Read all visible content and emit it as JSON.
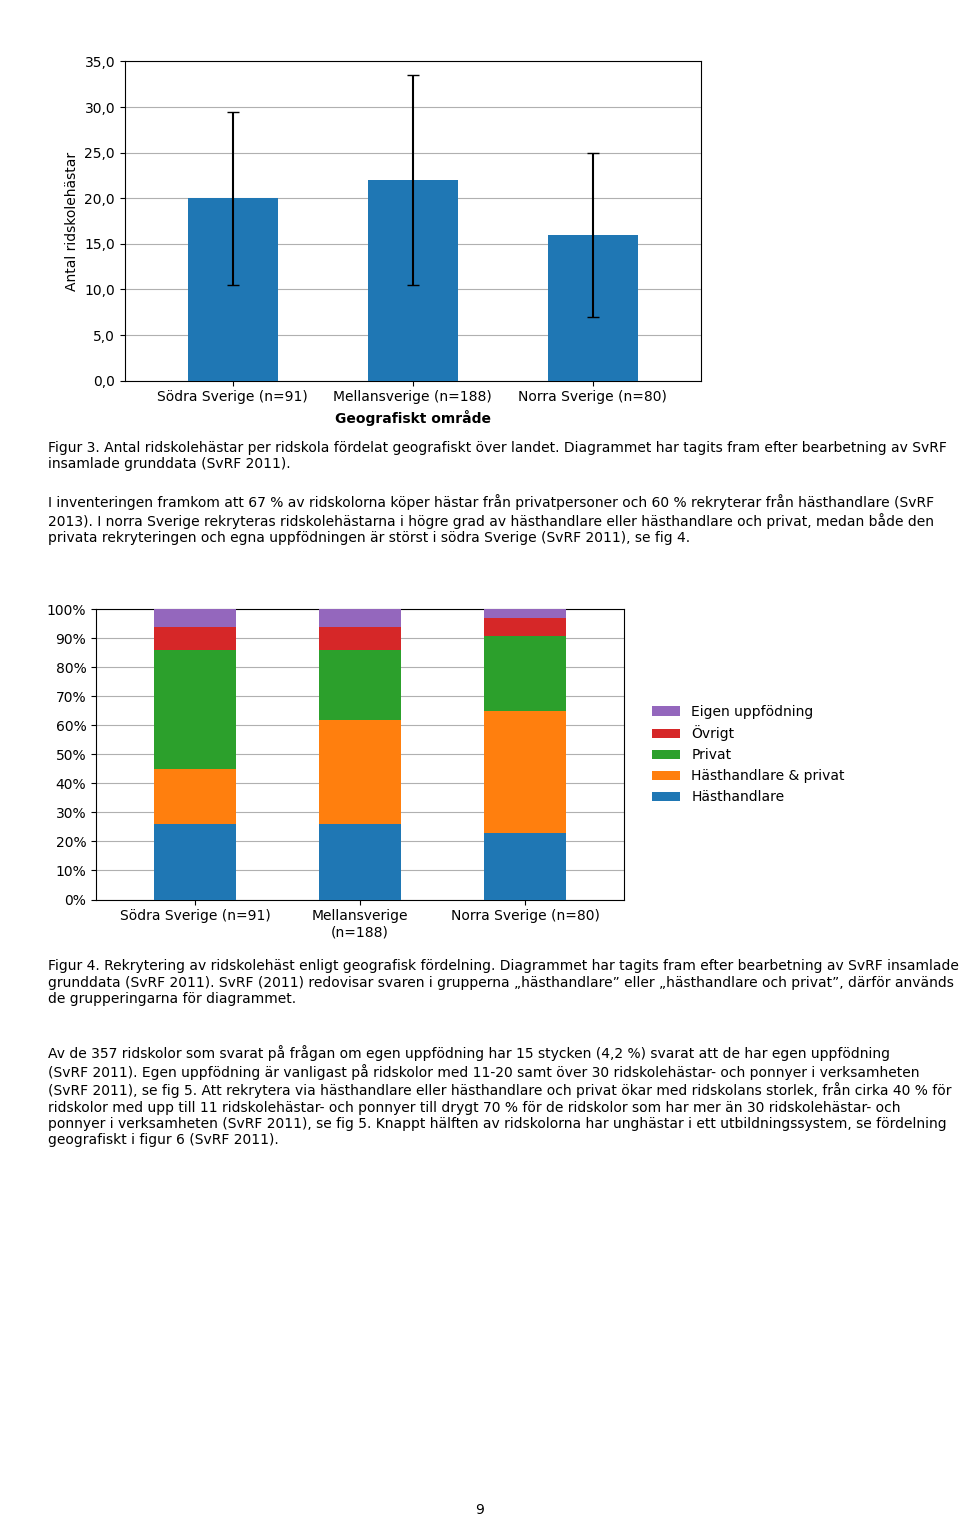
{
  "chart_data": [
    {
      "type": "bar",
      "categories": [
        "Södra Sverige (n=91)",
        "Mellansverige (n=188)",
        "Norra Sverige (n=80)"
      ],
      "values": [
        20.0,
        22.0,
        16.0
      ],
      "error_lower": [
        9.5,
        11.5,
        9.0
      ],
      "error_upper": [
        9.5,
        11.5,
        9.0
      ],
      "ylabel": "Antal ridskolehästar",
      "xlabel": "Geografiskt område",
      "ylim": [
        0,
        35
      ],
      "yticks": [
        {
          "value": 0,
          "label": "0,0"
        },
        {
          "value": 5,
          "label": "5,0"
        },
        {
          "value": 10,
          "label": "10,0"
        },
        {
          "value": 15,
          "label": "15,0"
        },
        {
          "value": 20,
          "label": "20,0"
        },
        {
          "value": 25,
          "label": "25,0"
        },
        {
          "value": 30,
          "label": "30,0"
        },
        {
          "value": 35,
          "label": "35,0"
        }
      ],
      "grid": true,
      "annotations": [
        "Figur 3. Antal ridskolehästar per ridskola fördelat geografiskt över landet. Diagrammet har tagits fram efter bearbetning av SvRF insamlade grunddata (SvRF 2011).",
        "I inventeringen framkom att 67 % av ridskolorna köper hästar från privatpersoner och 60 % rekryterar från hästhandlare (SvRF 2013). I norra Sverige rekryteras ridskolehästarna i högre grad av hästhandlare eller hästhandlare och privat, medan både den privata rekryteringen och egna uppfödningen är störst i södra Sverige (SvRF 2011), se fig 4."
      ]
    },
    {
      "type": "bar",
      "stacked": true,
      "categories": [
        "Södra Sverige (n=91)",
        "Mellansverige\n(n=188)",
        "Norra Sverige (n=80)"
      ],
      "series": [
        {
          "name": "Hästhandlare",
          "values": [
            26,
            26,
            23
          ]
        },
        {
          "name": "Hästhandlare & privat",
          "values": [
            19,
            36,
            42
          ]
        },
        {
          "name": "Privat",
          "values": [
            41,
            24,
            26
          ]
        },
        {
          "name": "Övrigt",
          "values": [
            8,
            8,
            6
          ]
        },
        {
          "name": "Eigen uppfödning",
          "values": [
            6,
            6,
            3
          ]
        }
      ],
      "ylim": [
        0,
        100
      ],
      "yticks": [
        {
          "value": 0,
          "label": "0%"
        },
        {
          "value": 10,
          "label": "10%"
        },
        {
          "value": 20,
          "label": "20%"
        },
        {
          "value": 30,
          "label": "30%"
        },
        {
          "value": 40,
          "label": "40%"
        },
        {
          "value": 50,
          "label": "50%"
        },
        {
          "value": 60,
          "label": "60%"
        },
        {
          "value": 70,
          "label": "70%"
        },
        {
          "value": 80,
          "label": "80%"
        },
        {
          "value": 90,
          "label": "90%"
        },
        {
          "value": 100,
          "label": "100%"
        }
      ],
      "grid": true,
      "legend": "center left",
      "annotations": [
        "Figur 4. Rekrytering av ridskolehäst enligt geografisk fördelning. Diagrammet har tagits fram efter bearbetning av SvRF insamlade grunddata (SvRF 2011). SvRF (2011) redovisar svaren i grupperna „hästhandlare” eller „hästhandlare och privat”, därför används de grupperingarna för diagrammet.",
        "Av de 357 ridskolor som svarat på frågan om egen uppfödning har 15 stycken (4,2 %) svarat att de har egen uppfödning (SvRF 2011). Egen uppfödning är vanligast på ridskolor med 11-20 samt över 30 ridskolehästar- och ponnyer i verksamheten (SvRF 2011), se fig 5. Att rekrytera via hästhandlare eller hästhandlare och privat ökar med ridskolans storlek, från cirka 40 % för ridskolor med upp till 11 ridskolehästar- och ponnyer till drygt 70 % för de ridskolor som har mer än 30 ridskolehästar- och ponnyer i verksamheten (SvRF 2011), se fig 5. Knappt hälften av ridskolorna har unghästar i ett utbildningssystem, se fördelning geografiskt i figur 6 (SvRF 2011).",
        "9"
      ]
    }
  ]
}
